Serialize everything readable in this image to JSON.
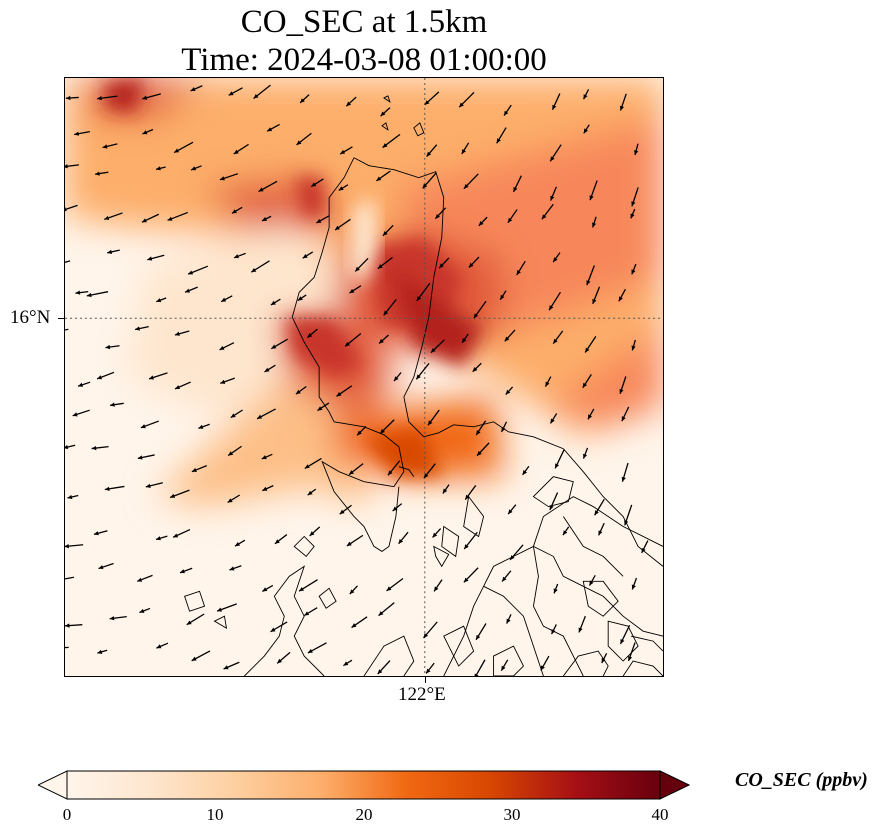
{
  "title_line1": "CO_SEC at 1.5km",
  "title_line2": "Time: 2024-03-08 01:00:00",
  "lat_tick": "16°N",
  "lon_tick": "122°E",
  "colorbar": {
    "label": "CO_SEC (ppbv)",
    "ticks": [
      "0",
      "10",
      "20",
      "30",
      "40"
    ],
    "min": 0,
    "max": 40,
    "extend": "both",
    "colors": [
      "#fff5eb",
      "#fee6ce",
      "#fdd0a2",
      "#fdae6b",
      "#f16913",
      "#d94801",
      "#a50f15",
      "#67000d"
    ]
  },
  "map": {
    "gridlines": "dotted",
    "land_color": "#fff5eb",
    "coastline_color": "#000000",
    "wind_vectors": "black arrows, predominantly from the northeast"
  }
}
